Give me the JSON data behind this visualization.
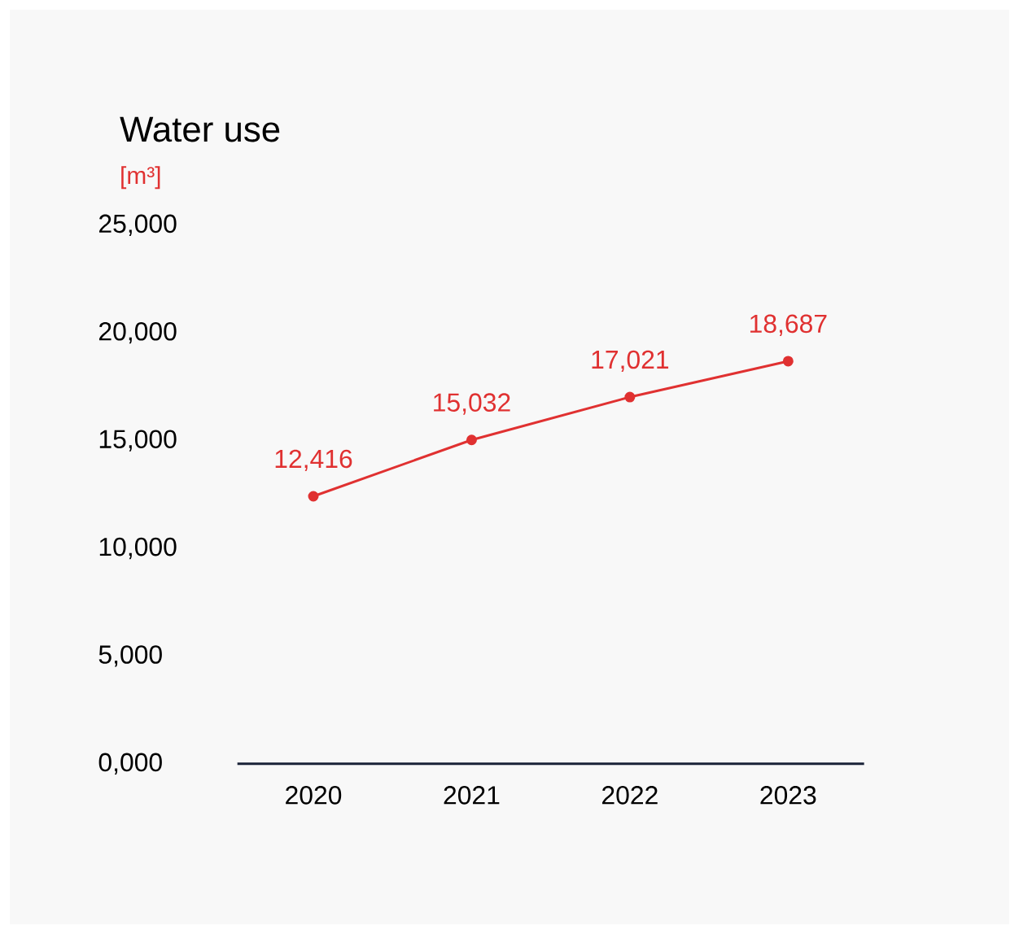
{
  "chart_data": {
    "type": "line",
    "title": "Water use",
    "subtitle": "[m³]",
    "categories": [
      "2020",
      "2021",
      "2022",
      "2023"
    ],
    "values": [
      12416,
      15032,
      17021,
      18687
    ],
    "value_labels": [
      "12,416",
      "15,032",
      "17,021",
      "18,687"
    ],
    "color": "#e03131",
    "ylim": [
      0,
      25000
    ],
    "yticks": [
      {
        "value": 0,
        "label": "0,000"
      },
      {
        "value": 5000,
        "label": "5,000"
      },
      {
        "value": 10000,
        "label": "10,000"
      },
      {
        "value": 15000,
        "label": "15,000"
      },
      {
        "value": 20000,
        "label": "20,000"
      },
      {
        "value": 25000,
        "label": "25,000"
      }
    ],
    "marker": "circle",
    "line_style": "solid",
    "grid": false
  }
}
